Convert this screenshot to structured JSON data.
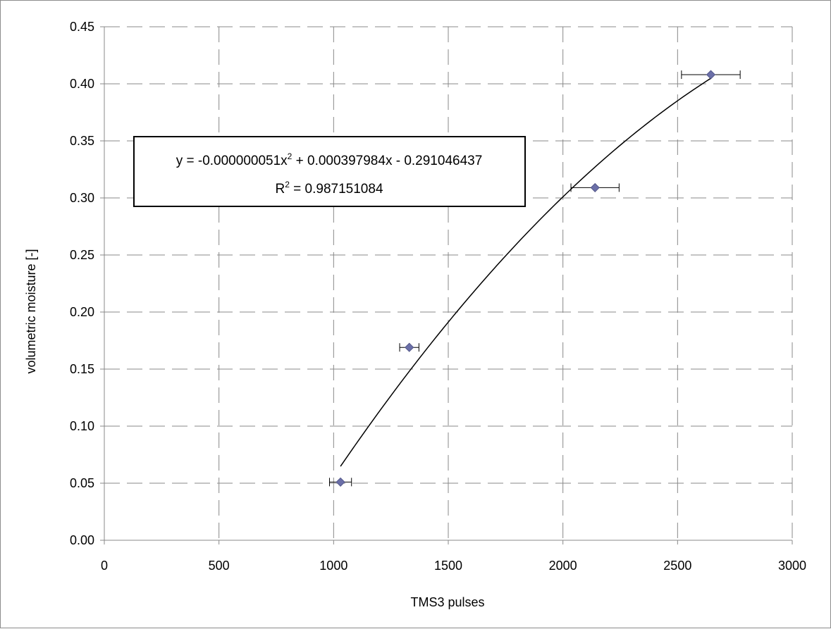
{
  "chart_data": {
    "type": "scatter",
    "xlabel": "TMS3 pulses",
    "ylabel": "volumetric moisture [-]",
    "xlim": [
      0,
      3000
    ],
    "ylim": [
      0,
      0.45
    ],
    "x_ticks": [
      "0",
      "500",
      "1000",
      "1500",
      "2000",
      "2500",
      "3000"
    ],
    "y_ticks": [
      "0.00",
      "0.05",
      "0.10",
      "0.15",
      "0.20",
      "0.25",
      "0.30",
      "0.35",
      "0.40",
      "0.45"
    ],
    "grid": true,
    "points": [
      {
        "x": 1030,
        "y": 0.051,
        "xerr": 48
      },
      {
        "x": 1330,
        "y": 0.169,
        "xerr": 42
      },
      {
        "x": 2140,
        "y": 0.309,
        "xerr": 105
      },
      {
        "x": 2645,
        "y": 0.408,
        "xerr": 128
      }
    ],
    "marker_color": "#6b6fa8",
    "trendline": {
      "type": "polynomial",
      "a": -5.1e-08,
      "b": 0.000397984,
      "c": -0.291046437,
      "x_range": [
        1030,
        2645
      ]
    },
    "equation_line1_prefix": "y = -0.000000051x",
    "equation_line1_suffix": " + 0.000397984x - 0.291046437",
    "equation_line2_prefix": "R",
    "equation_line2_suffix": " = 0.987151084",
    "superscript": "2"
  }
}
